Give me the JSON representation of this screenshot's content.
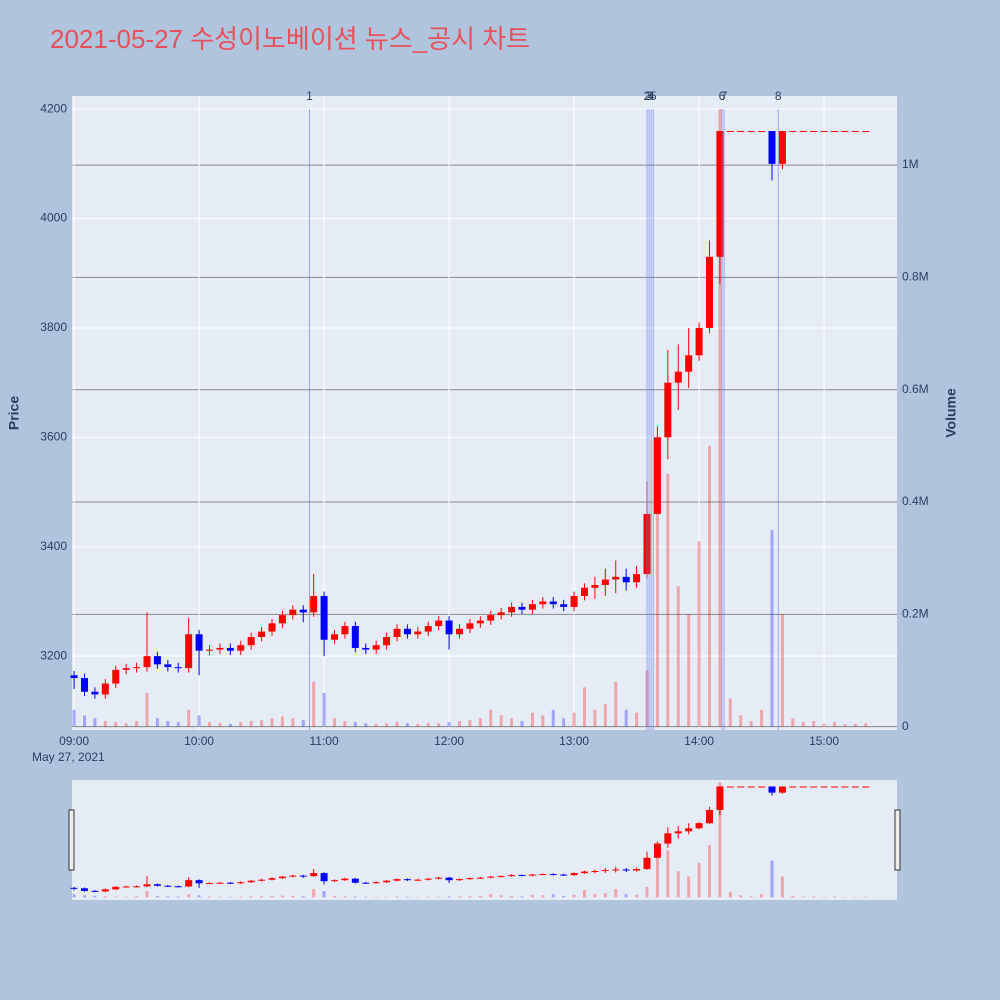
{
  "chart_data": {
    "type": "candlestick",
    "title": "2021-05-27 수성이노베이션 뉴스_공시 차트",
    "x": [
      "09:00",
      "09:05",
      "09:10",
      "09:15",
      "09:20",
      "09:25",
      "09:30",
      "09:35",
      "09:40",
      "09:45",
      "09:50",
      "09:55",
      "10:00",
      "10:05",
      "10:10",
      "10:15",
      "10:20",
      "10:25",
      "10:30",
      "10:35",
      "10:40",
      "10:45",
      "10:50",
      "10:55",
      "11:00",
      "11:05",
      "11:10",
      "11:15",
      "11:20",
      "11:25",
      "11:30",
      "11:35",
      "11:40",
      "11:45",
      "11:50",
      "11:55",
      "12:00",
      "12:05",
      "12:10",
      "12:15",
      "12:20",
      "12:25",
      "12:30",
      "12:35",
      "12:40",
      "12:45",
      "12:50",
      "12:55",
      "13:00",
      "13:05",
      "13:10",
      "13:15",
      "13:20",
      "13:25",
      "13:30",
      "13:35",
      "13:40",
      "13:45",
      "13:50",
      "13:55",
      "14:00",
      "14:05",
      "14:10",
      "14:15",
      "14:20",
      "14:25",
      "14:30",
      "14:35",
      "14:40",
      "14:45",
      "14:50",
      "14:55",
      "15:00",
      "15:05",
      "15:10",
      "15:15",
      "15:20"
    ],
    "open": [
      3165,
      3160,
      3135,
      3130,
      3150,
      3175,
      3178,
      3180,
      3200,
      3185,
      3180,
      3178,
      3240,
      3210,
      3212,
      3215,
      3210,
      3220,
      3235,
      3245,
      3260,
      3275,
      3285,
      3280,
      3310,
      3230,
      3240,
      3255,
      3215,
      3212,
      3220,
      3235,
      3250,
      3240,
      3245,
      3255,
      3265,
      3240,
      3250,
      3260,
      3265,
      3275,
      3280,
      3290,
      3285,
      3295,
      3300,
      3295,
      3290,
      3310,
      3325,
      3330,
      3340,
      3345,
      3335,
      3350,
      3460,
      3600,
      3700,
      3720,
      3750,
      3800,
      3930,
      4160,
      4160,
      4160,
      4160,
      4160,
      4100,
      4160,
      4160,
      4160,
      4160,
      4160,
      4160,
      4160,
      4160
    ],
    "high": [
      3173,
      3168,
      3143,
      3158,
      3183,
      3186,
      3188,
      3280,
      3208,
      3193,
      3188,
      3270,
      3248,
      3220,
      3223,
      3223,
      3228,
      3243,
      3253,
      3268,
      3283,
      3293,
      3293,
      3350,
      3318,
      3248,
      3263,
      3263,
      3223,
      3228,
      3243,
      3258,
      3258,
      3253,
      3263,
      3273,
      3273,
      3258,
      3268,
      3273,
      3283,
      3288,
      3298,
      3298,
      3303,
      3308,
      3308,
      3303,
      3318,
      3333,
      3345,
      3360,
      3375,
      3360,
      3365,
      3520,
      3620,
      3760,
      3770,
      3800,
      3810,
      3960,
      4160,
      4160,
      4160,
      4160,
      4160,
      4160,
      4160,
      4160,
      4160,
      4160,
      4160,
      4160,
      4160,
      4160,
      4160
    ],
    "low": [
      3140,
      3127,
      3122,
      3122,
      3142,
      3167,
      3170,
      3172,
      3177,
      3172,
      3170,
      3170,
      3165,
      3202,
      3204,
      3202,
      3202,
      3212,
      3227,
      3237,
      3252,
      3267,
      3262,
      3272,
      3200,
      3222,
      3232,
      3207,
      3204,
      3204,
      3212,
      3227,
      3232,
      3232,
      3237,
      3247,
      3212,
      3232,
      3242,
      3252,
      3257,
      3267,
      3272,
      3277,
      3277,
      3287,
      3287,
      3282,
      3282,
      3302,
      3305,
      3310,
      3315,
      3320,
      3325,
      3342,
      3460,
      3560,
      3650,
      3690,
      3740,
      3790,
      3880,
      4160,
      4160,
      4160,
      4160,
      4070,
      4090,
      4160,
      4160,
      4160,
      4160,
      4160,
      4160,
      4160,
      4160
    ],
    "close": [
      3160,
      3135,
      3130,
      3150,
      3175,
      3178,
      3180,
      3200,
      3185,
      3180,
      3178,
      3240,
      3210,
      3212,
      3215,
      3210,
      3220,
      3235,
      3245,
      3260,
      3275,
      3285,
      3280,
      3310,
      3230,
      3240,
      3255,
      3215,
      3212,
      3220,
      3235,
      3250,
      3240,
      3245,
      3255,
      3265,
      3240,
      3250,
      3260,
      3265,
      3275,
      3280,
      3290,
      3285,
      3295,
      3300,
      3295,
      3290,
      3310,
      3325,
      3330,
      3340,
      3345,
      3335,
      3350,
      3460,
      3600,
      3700,
      3720,
      3750,
      3800,
      3930,
      4160,
      4160,
      4160,
      4160,
      4160,
      4100,
      4160,
      4160,
      4160,
      4160,
      4160,
      4160,
      4160,
      4160,
      4160
    ],
    "volume": [
      30000,
      20000,
      15000,
      10000,
      8000,
      6000,
      10000,
      60000,
      15000,
      10000,
      8000,
      30000,
      20000,
      8000,
      6000,
      5000,
      8000,
      10000,
      12000,
      15000,
      18000,
      15000,
      12000,
      80000,
      60000,
      15000,
      10000,
      8000,
      6000,
      5000,
      6000,
      8000,
      6000,
      5000,
      6000,
      6000,
      8000,
      10000,
      12000,
      15000,
      30000,
      20000,
      15000,
      10000,
      25000,
      20000,
      30000,
      15000,
      25000,
      70000,
      30000,
      40000,
      80000,
      30000,
      25000,
      100000,
      400000,
      450000,
      250000,
      200000,
      330000,
      500000,
      1100000,
      50000,
      20000,
      10000,
      30000,
      350000,
      200000,
      15000,
      8000,
      10000,
      5000,
      8000,
      4000,
      5000,
      6000
    ],
    "increasing_color": "#ff0000",
    "decreasing_color": "#0000ff",
    "xlim": [
      "08:59",
      "15:35"
    ],
    "xticks": [
      "09:00",
      "10:00",
      "11:00",
      "12:00",
      "13:00",
      "14:00",
      "15:00"
    ],
    "x_date_label": "May 27, 2021",
    "y_label": "Price",
    "ylim": [
      3065,
      4224
    ],
    "yticks": [
      3200,
      3400,
      3600,
      3800,
      4000,
      4200
    ],
    "y2_label": "Volume",
    "y2lim": [
      -6000,
      1123000
    ],
    "y2ticks": [
      0,
      {
        "value": 200000,
        "label": "0.2M"
      },
      {
        "value": 400000,
        "label": "0.4M"
      },
      {
        "value": 600000,
        "label": "0.6M"
      },
      {
        "value": 800000,
        "label": "0.8M"
      },
      {
        "value": 1000000,
        "label": "1M"
      }
    ],
    "news": [
      {
        "label": "1",
        "x": "10:53"
      },
      {
        "label": "2",
        "x": "13:35"
      },
      {
        "label": "3",
        "x": "13:36"
      },
      {
        "label": "4",
        "x": "13:37"
      },
      {
        "label": "5",
        "x": "13:38"
      },
      {
        "label": "6",
        "x": "14:11"
      },
      {
        "label": "7",
        "x": "14:12"
      },
      {
        "label": "8",
        "x": "14:38"
      }
    ],
    "grid": true
  }
}
